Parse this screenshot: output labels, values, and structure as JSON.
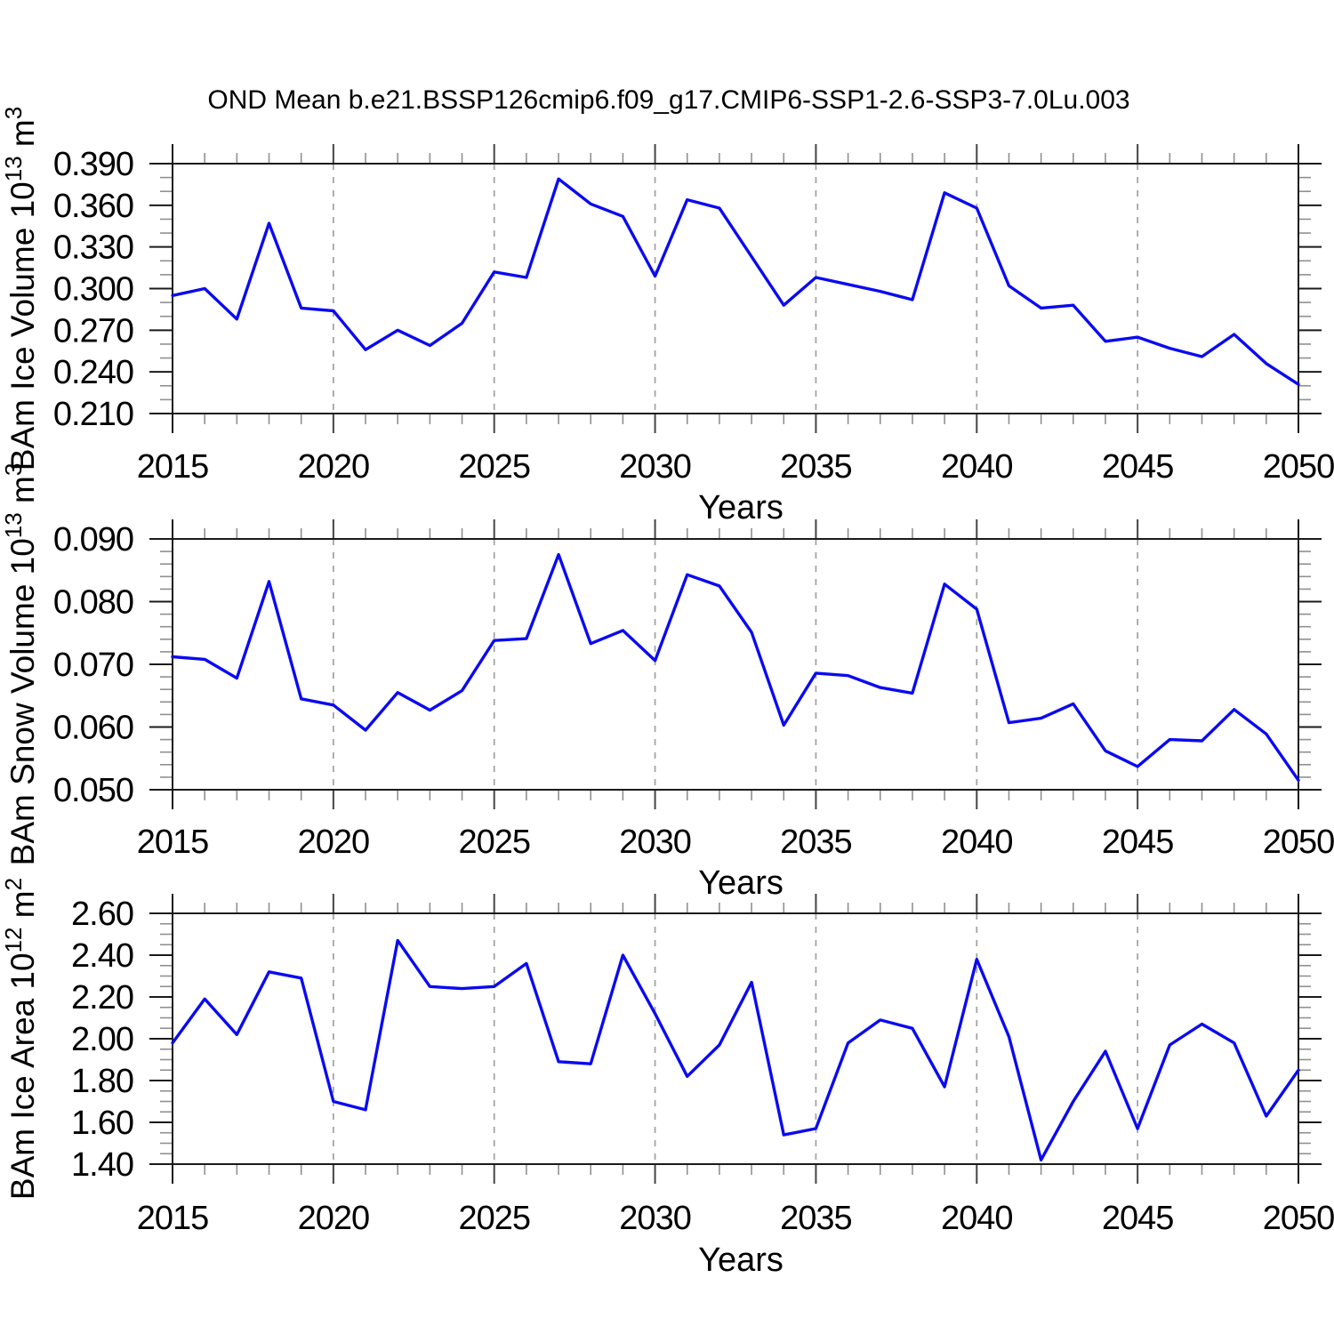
{
  "chart_data": {
    "type": "line",
    "title": "OND Mean b.e21.BSSP126cmip6.f09_g17.CMIP6-SSP1-2.6-SSP3-7.0Lu.003",
    "xlabel": "Years",
    "x": [
      2015,
      2016,
      2017,
      2018,
      2019,
      2020,
      2021,
      2022,
      2023,
      2024,
      2025,
      2026,
      2027,
      2028,
      2029,
      2030,
      2031,
      2032,
      2033,
      2034,
      2035,
      2036,
      2037,
      2038,
      2039,
      2040,
      2041,
      2042,
      2043,
      2044,
      2045,
      2046,
      2047,
      2048,
      2049,
      2050
    ],
    "xlim": [
      2015,
      2050
    ],
    "x_major_ticks": [
      2015,
      2020,
      2025,
      2030,
      2035,
      2040,
      2045,
      2050
    ],
    "x_minor_step": 1,
    "x_gridlines": [
      2020,
      2025,
      2030,
      2035,
      2040,
      2045
    ],
    "grid_style": "dashed",
    "line_color": "#0a0af2",
    "frame_color": "#1a1a1a",
    "x_major_tick_color": "#444444",
    "minor_tick_color": "#909090",
    "gridline_color": "#a0a0a0",
    "charts": [
      {
        "name": "bam-ice-volume",
        "ylabel": "BAm Ice Volume 10^13 m^3",
        "ylabel_parts": [
          {
            "text": "BAm Ice Volume 10",
            "sup": false
          },
          {
            "text": "13",
            "sup": true
          },
          {
            "text": " m",
            "sup": false
          },
          {
            "text": "3",
            "sup": true
          }
        ],
        "ylim": [
          0.21,
          0.39
        ],
        "y_major_step": 0.03,
        "y_minor_step": 0.01,
        "y_tick_values": [
          0.21,
          0.24,
          0.27,
          0.3,
          0.33,
          0.36,
          0.39
        ],
        "y_tick_labels": [
          "0.210",
          "0.240",
          "0.270",
          "0.300",
          "0.330",
          "0.360",
          "0.390"
        ],
        "values": [
          0.295,
          0.3,
          0.278,
          0.347,
          0.286,
          0.284,
          0.256,
          0.27,
          0.259,
          0.275,
          0.312,
          0.308,
          0.379,
          0.361,
          0.352,
          0.309,
          0.364,
          0.358,
          0.323,
          0.288,
          0.308,
          0.303,
          0.298,
          0.292,
          0.369,
          0.358,
          0.302,
          0.286,
          0.288,
          0.262,
          0.265,
          0.257,
          0.251,
          0.267,
          0.246,
          0.231
        ]
      },
      {
        "name": "bam-snow-volume",
        "ylabel": "BAm Snow Volume 10^13 m^3",
        "ylabel_parts": [
          {
            "text": "BAm Snow Volume 10",
            "sup": false
          },
          {
            "text": "13",
            "sup": true
          },
          {
            "text": " m",
            "sup": false
          },
          {
            "text": "3",
            "sup": true
          }
        ],
        "ylim": [
          0.05,
          0.09
        ],
        "y_major_step": 0.01,
        "y_minor_step": 0.002,
        "y_tick_values": [
          0.05,
          0.06,
          0.07,
          0.08,
          0.09
        ],
        "y_tick_labels": [
          "0.050",
          "0.060",
          "0.070",
          "0.080",
          "0.090"
        ],
        "values": [
          0.0712,
          0.0708,
          0.0678,
          0.0832,
          0.0645,
          0.0635,
          0.0595,
          0.0655,
          0.0627,
          0.0658,
          0.0738,
          0.0741,
          0.0875,
          0.0733,
          0.0754,
          0.0706,
          0.0843,
          0.0825,
          0.0751,
          0.0603,
          0.0686,
          0.0682,
          0.0663,
          0.0654,
          0.0828,
          0.0788,
          0.0607,
          0.0614,
          0.0637,
          0.0562,
          0.0537,
          0.058,
          0.0578,
          0.0628,
          0.0589,
          0.0515
        ]
      },
      {
        "name": "bam-ice-area",
        "ylabel": "BAm Ice Area 10^12 m^2",
        "ylabel_parts": [
          {
            "text": "BAm Ice Area 10",
            "sup": false
          },
          {
            "text": "12",
            "sup": true
          },
          {
            "text": " m",
            "sup": false
          },
          {
            "text": "2",
            "sup": true
          }
        ],
        "ylim": [
          1.4,
          2.6
        ],
        "y_major_step": 0.2,
        "y_minor_step": 0.05,
        "y_tick_values": [
          1.4,
          1.6,
          1.8,
          2.0,
          2.2,
          2.4,
          2.6
        ],
        "y_tick_labels": [
          "1.40",
          "1.60",
          "1.80",
          "2.00",
          "2.20",
          "2.40",
          "2.60"
        ],
        "values": [
          1.98,
          2.19,
          2.02,
          2.32,
          2.29,
          1.7,
          1.66,
          2.47,
          2.25,
          2.24,
          2.25,
          2.36,
          1.89,
          1.88,
          2.4,
          2.12,
          1.82,
          1.97,
          2.27,
          1.54,
          1.57,
          1.98,
          2.09,
          2.05,
          1.77,
          2.38,
          2.01,
          1.42,
          1.7,
          1.94,
          1.57,
          1.97,
          2.07,
          1.98,
          1.63,
          1.85
        ]
      }
    ]
  }
}
